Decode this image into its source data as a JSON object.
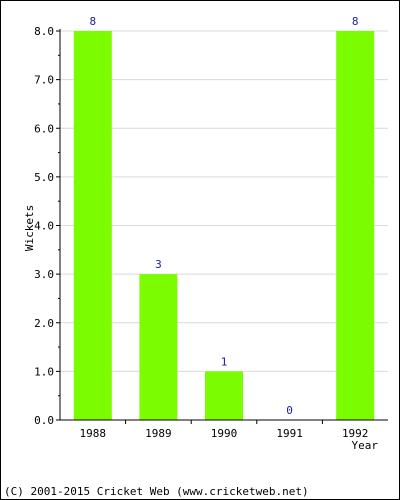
{
  "colors": {
    "bar": "#7cfc00",
    "data_label": "#1a1aa8",
    "grid": "#d9d9d9",
    "axis": "#000000"
  },
  "chart_data": {
    "type": "bar",
    "categories": [
      "1988",
      "1989",
      "1990",
      "1991",
      "1992"
    ],
    "values": [
      8,
      3,
      1,
      0,
      8
    ],
    "data_labels": [
      "8",
      "3",
      "1",
      "0",
      "8"
    ],
    "xlabel": "Year",
    "ylabel": "Wickets",
    "ylim": [
      0,
      8
    ],
    "yticks": [
      "0.0",
      "1.0",
      "2.0",
      "3.0",
      "4.0",
      "5.0",
      "6.0",
      "7.0",
      "8.0"
    ],
    "grid": true
  },
  "footer": {
    "copyright": "(C) 2001-2015 Cricket Web (www.cricketweb.net)"
  }
}
